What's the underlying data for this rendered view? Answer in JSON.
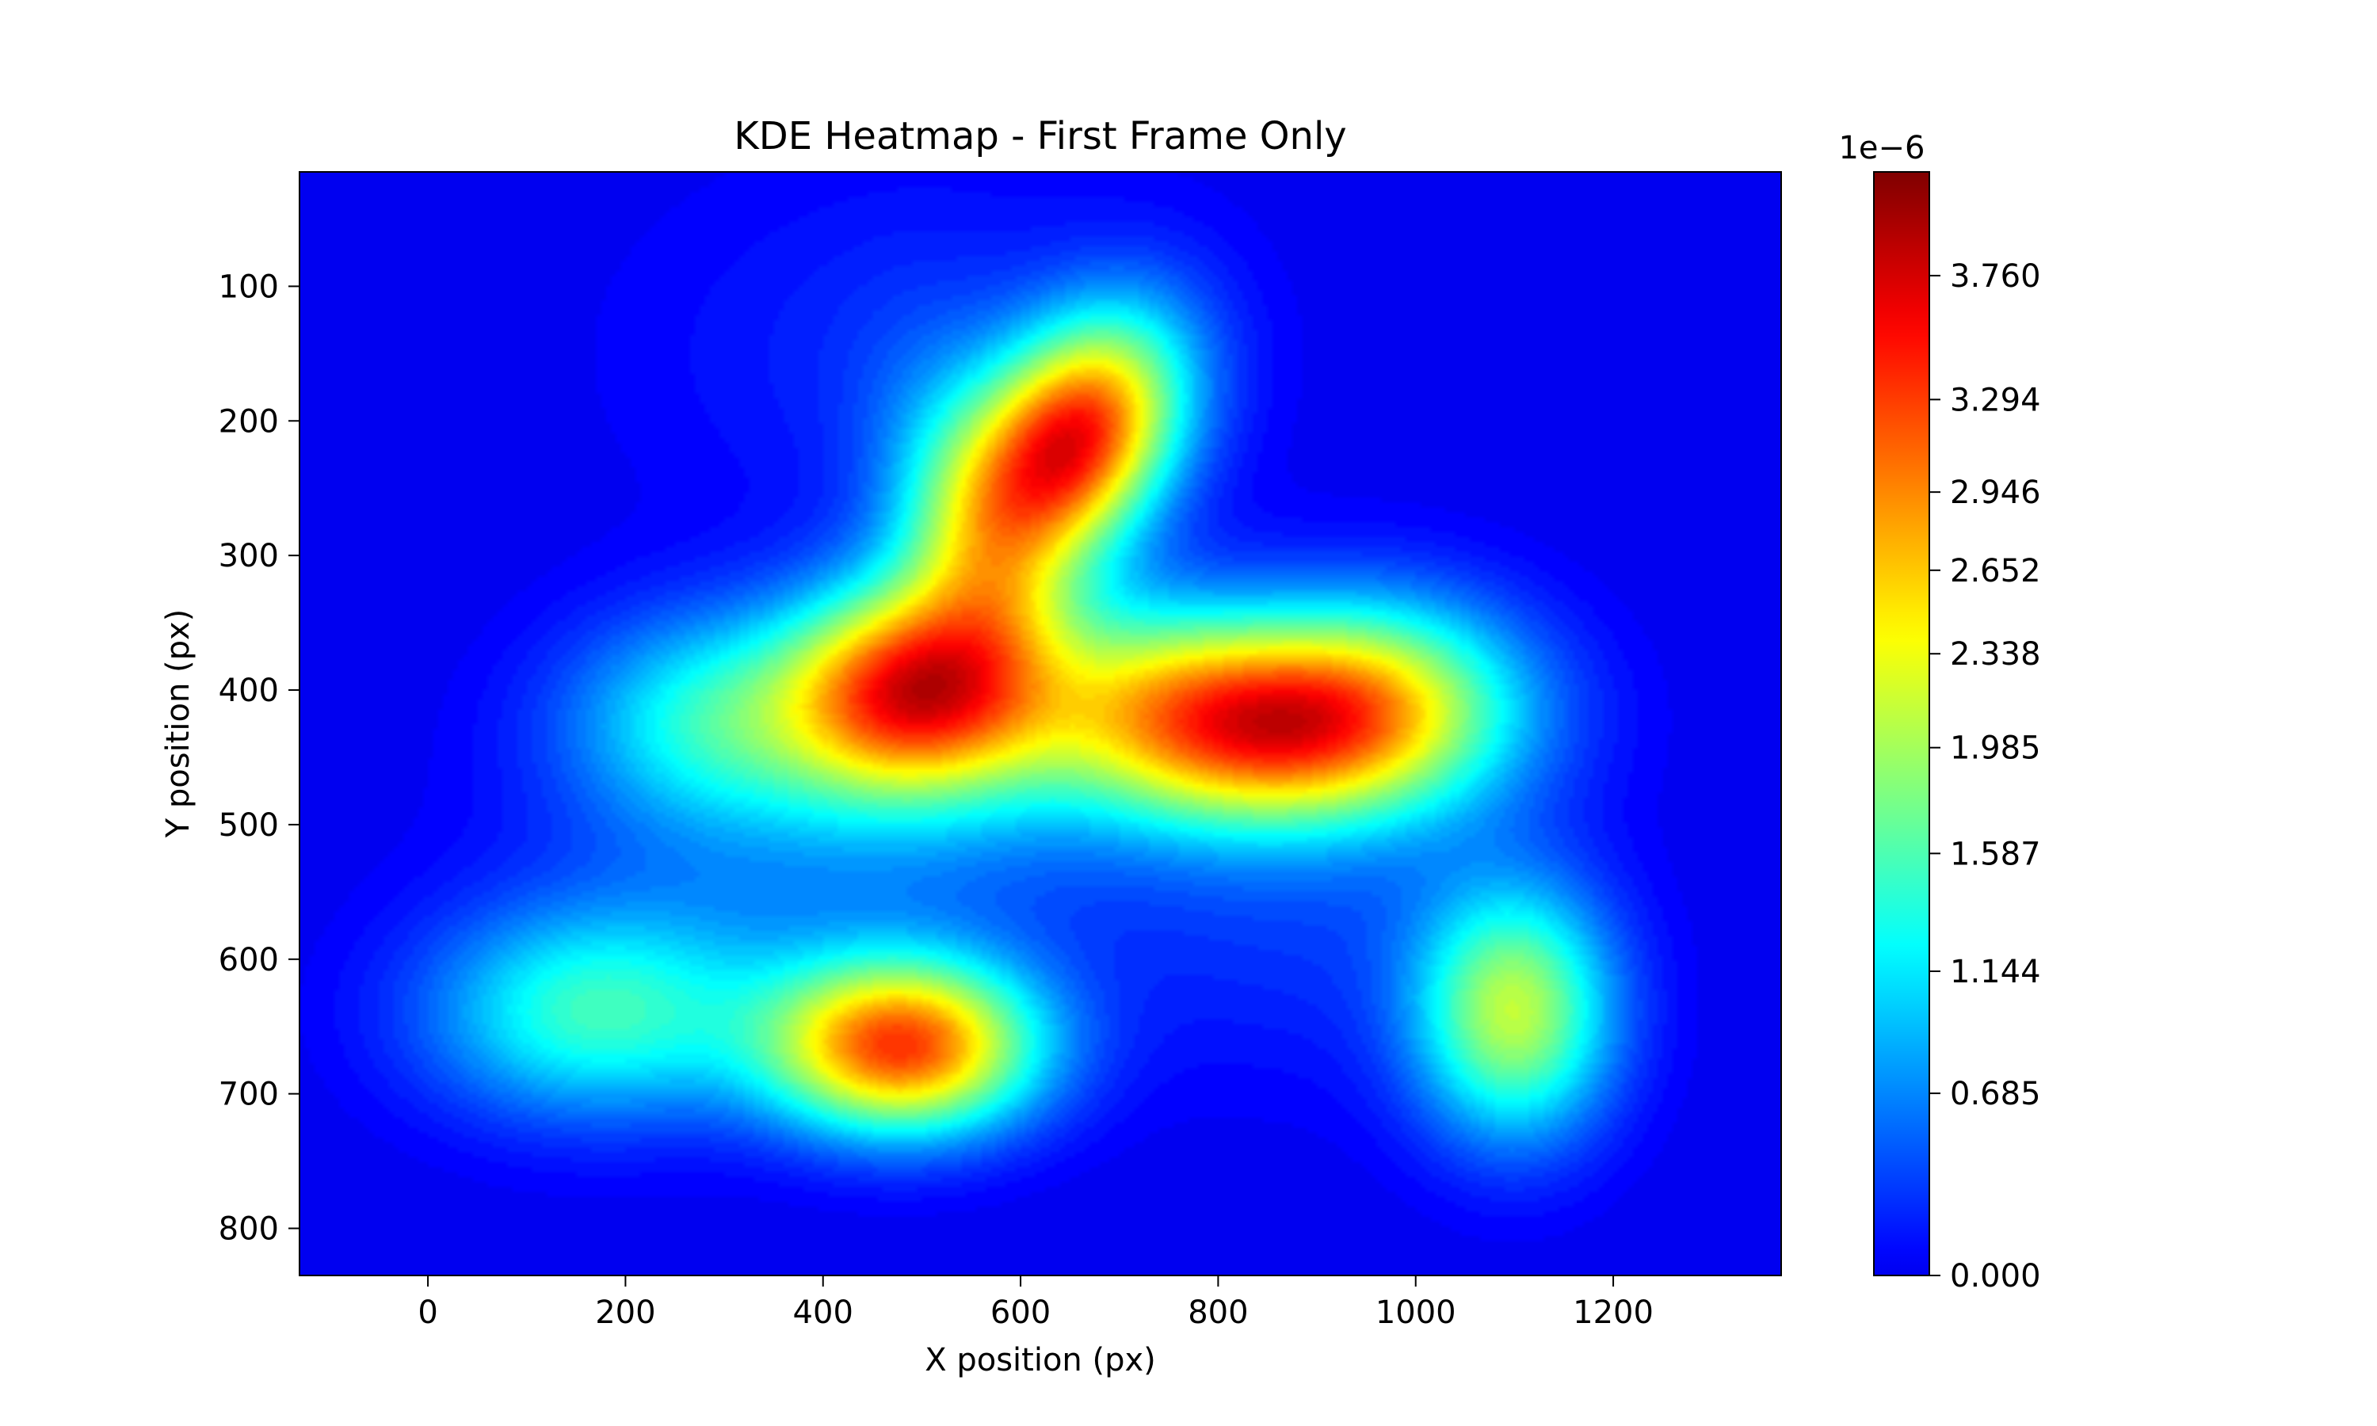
{
  "chart_data": {
    "type": "heatmap",
    "title": "KDE Heatmap - First Frame Only",
    "xlabel": "X position (px)",
    "ylabel": "Y position (px)",
    "xlim": [
      -130,
      1370
    ],
    "ylim": [
      835,
      15
    ],
    "y_inverted": true,
    "x_ticks": [
      0,
      200,
      400,
      600,
      800,
      1000,
      1200
    ],
    "x_tick_labels": [
      "0",
      "200",
      "400",
      "600",
      "800",
      "1000",
      "1200"
    ],
    "y_ticks": [
      100,
      200,
      300,
      400,
      500,
      600,
      700,
      800
    ],
    "y_tick_labels": [
      "100",
      "200",
      "300",
      "400",
      "500",
      "600",
      "700",
      "800"
    ],
    "colormap": "jet",
    "grid": false,
    "colorbar": {
      "offset_label": "1e−6",
      "ticks": [
        0.0,
        0.685,
        1.144,
        1.587,
        1.985,
        2.338,
        2.652,
        2.946,
        3.294,
        3.76
      ],
      "tick_labels": [
        "0.000",
        "0.685",
        "1.144",
        "1.587",
        "1.985",
        "2.338",
        "2.652",
        "2.946",
        "3.294",
        "3.760"
      ],
      "min": 0.0,
      "max": 4.15
    },
    "density_peaks": [
      {
        "x": 655,
        "y": 215,
        "value": 4.15
      },
      {
        "x": 490,
        "y": 400,
        "value": 3.75
      },
      {
        "x": 480,
        "y": 665,
        "value": 3.95
      },
      {
        "x": 830,
        "y": 430,
        "value": 3.5
      },
      {
        "x": 1100,
        "y": 640,
        "value": 2.5
      }
    ]
  }
}
